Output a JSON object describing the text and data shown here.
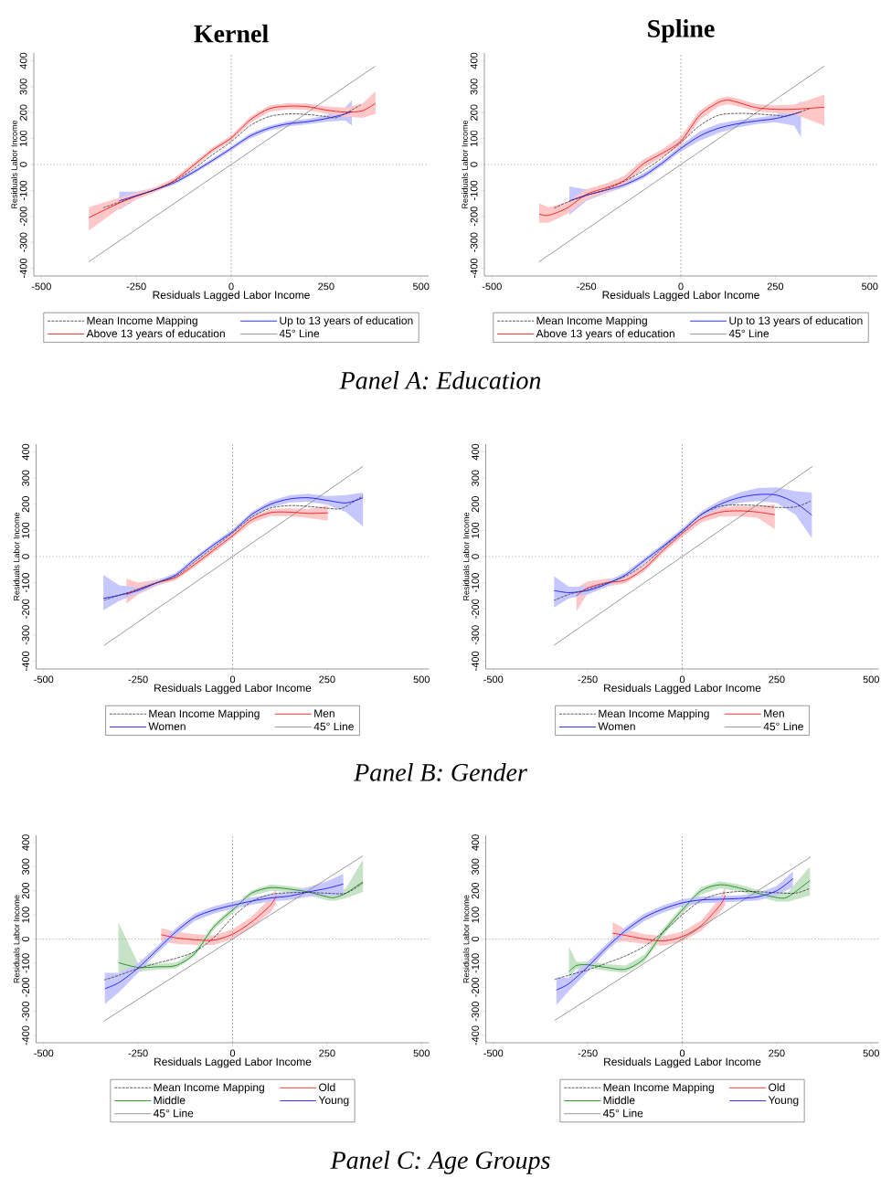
{
  "chart_data": [
    {
      "type": "line",
      "title": "Kernel",
      "xlabel": "Residuals Lagged Labor Income",
      "ylabel": "Residuals Labor Income",
      "xlim": [
        -520,
        520
      ],
      "ylim": [
        -430,
        430
      ],
      "xticks": [
        -500,
        -250,
        0,
        250,
        500
      ],
      "yticks": [
        -400,
        -300,
        -200,
        -100,
        0,
        100,
        200,
        300,
        400
      ],
      "legend": "bottom",
      "annotations": [
        "Panel A: Education"
      ],
      "ref_lines": [
        {
          "axis": "x",
          "value": 0,
          "line_style": "dashed",
          "color": "#808080"
        },
        {
          "axis": "y",
          "value": 0,
          "line_style": "dotted",
          "color": "#808080"
        }
      ],
      "series": [
        {
          "name": "Mean Income Mapping",
          "color": "#333333",
          "line_style": "dashed",
          "x": [
            -337,
            -300,
            -250,
            -200,
            -150,
            -100,
            -50,
            0,
            50,
            100,
            150,
            200,
            250,
            280,
            341
          ],
          "values": [
            -167,
            -148,
            -122,
            -97,
            -65,
            -18,
            37,
            88,
            150,
            185,
            195,
            193,
            185,
            182,
            230
          ]
        },
        {
          "name": "Up to 13 years of education",
          "color": "#0000ff",
          "x": [
            -295,
            -250,
            -200,
            -150,
            -100,
            -50,
            0,
            50,
            100,
            150,
            200,
            250,
            300,
            318
          ],
          "values": [
            -140,
            -120,
            -97,
            -70,
            -30,
            15,
            62,
            110,
            140,
            157,
            165,
            177,
            195,
            205
          ],
          "lower": [
            -175,
            -135,
            -105,
            -78,
            -38,
            7,
            54,
            100,
            130,
            147,
            155,
            165,
            170,
            150
          ],
          "upper": [
            -105,
            -105,
            -89,
            -62,
            -22,
            23,
            70,
            120,
            150,
            167,
            175,
            189,
            220,
            248
          ]
        },
        {
          "name": "Above 13 years of education",
          "color": "#ff0000",
          "x": [
            -375,
            -300,
            -250,
            -200,
            -150,
            -100,
            -50,
            0,
            50,
            100,
            150,
            200,
            250,
            300,
            345,
            380
          ],
          "values": [
            -205,
            -152,
            -122,
            -97,
            -62,
            -4,
            55,
            102,
            172,
            215,
            225,
            223,
            210,
            202,
            207,
            236
          ],
          "lower": [
            -255,
            -175,
            -135,
            -107,
            -72,
            -14,
            45,
            92,
            160,
            203,
            213,
            211,
            196,
            185,
            180,
            195
          ],
          "upper": [
            -165,
            -130,
            -109,
            -87,
            -52,
            6,
            65,
            112,
            184,
            227,
            237,
            235,
            224,
            219,
            234,
            282
          ]
        },
        {
          "name": "45° Line",
          "color": "#808080",
          "x": [
            -376,
            379
          ],
          "values": [
            -376,
            379
          ]
        }
      ]
    },
    {
      "type": "line",
      "title": "Spline",
      "xlabel": "Residuals Lagged Labor Income",
      "ylabel": "Residuals Labor Income",
      "xlim": [
        -520,
        520
      ],
      "ylim": [
        -430,
        430
      ],
      "xticks": [
        -500,
        -250,
        0,
        250,
        500
      ],
      "yticks": [
        -400,
        -300,
        -200,
        -100,
        0,
        100,
        200,
        300,
        400
      ],
      "legend": "bottom",
      "ref_lines": [
        {
          "axis": "x",
          "value": 0,
          "line_style": "dashed",
          "color": "#808080"
        },
        {
          "axis": "y",
          "value": 0,
          "line_style": "dotted",
          "color": "#808080"
        }
      ],
      "series": [
        {
          "name": "Mean Income Mapping",
          "color": "#333333",
          "line_style": "dashed",
          "x": [
            -335,
            -300,
            -250,
            -200,
            -150,
            -100,
            -50,
            0,
            50,
            100,
            150,
            200,
            250,
            280,
            340
          ],
          "values": [
            -168,
            -145,
            -120,
            -97,
            -65,
            -25,
            25,
            85,
            150,
            190,
            197,
            195,
            190,
            187,
            215
          ]
        },
        {
          "name": "Up to 13 years of education",
          "color": "#0000ff",
          "x": [
            -295,
            -250,
            -200,
            -150,
            -100,
            -50,
            0,
            50,
            100,
            150,
            200,
            250,
            300,
            318
          ],
          "values": [
            -140,
            -118,
            -100,
            -78,
            -45,
            5,
            62,
            110,
            140,
            157,
            168,
            177,
            195,
            203
          ],
          "lower": [
            -195,
            -140,
            -112,
            -88,
            -55,
            -5,
            50,
            92,
            122,
            143,
            156,
            163,
            150,
            105
          ],
          "upper": [
            -85,
            -96,
            -88,
            -68,
            -35,
            15,
            74,
            128,
            158,
            171,
            180,
            191,
            225,
            245
          ]
        },
        {
          "name": "Above 13 years of education",
          "color": "#ff0000",
          "x": [
            -375,
            -350,
            -300,
            -250,
            -200,
            -150,
            -100,
            -50,
            0,
            50,
            100,
            125,
            150,
            200,
            250,
            300,
            380
          ],
          "values": [
            -191,
            -196,
            -167,
            -115,
            -91,
            -62,
            2,
            43,
            90,
            190,
            240,
            248,
            240,
            219,
            213,
            213,
            221
          ],
          "lower": [
            -225,
            -225,
            -190,
            -135,
            -108,
            -80,
            -15,
            28,
            72,
            172,
            225,
            233,
            225,
            205,
            198,
            195,
            150
          ],
          "upper": [
            -150,
            -165,
            -145,
            -95,
            -74,
            -44,
            19,
            58,
            108,
            208,
            255,
            263,
            255,
            233,
            228,
            231,
            270
          ]
        },
        {
          "name": "45° Line",
          "color": "#808080",
          "x": [
            -376,
            380
          ],
          "values": [
            -376,
            380
          ]
        }
      ]
    },
    {
      "type": "line",
      "xlabel": "Residuals Lagged Labor Income",
      "ylabel": "Residuals Labor Income",
      "xlim": [
        -520,
        520
      ],
      "ylim": [
        -430,
        430
      ],
      "xticks": [
        -500,
        -250,
        0,
        250,
        500
      ],
      "yticks": [
        -400,
        -300,
        -200,
        -100,
        0,
        100,
        200,
        300,
        400
      ],
      "legend": "bottom",
      "annotations": [
        "Panel B: Gender"
      ],
      "ref_lines": [
        {
          "axis": "x",
          "value": 0,
          "line_style": "dashed",
          "color": "#808080"
        },
        {
          "axis": "y",
          "value": 0,
          "line_style": "dotted",
          "color": "#808080"
        }
      ],
      "series": [
        {
          "name": "Mean Income Mapping",
          "color": "#333333",
          "line_style": "dashed",
          "x": [
            -340,
            -300,
            -250,
            -200,
            -150,
            -100,
            -50,
            0,
            50,
            100,
            150,
            200,
            250,
            290,
            345
          ],
          "values": [
            -167,
            -148,
            -125,
            -100,
            -75,
            -20,
            35,
            90,
            150,
            185,
            195,
            192,
            185,
            185,
            233
          ]
        },
        {
          "name": "Men",
          "color": "#ff0000",
          "x": [
            -281,
            -250,
            -200,
            -150,
            -100,
            -50,
            0,
            50,
            100,
            150,
            200,
            252
          ],
          "values": [
            -147,
            -125,
            -100,
            -80,
            -30,
            25,
            80,
            140,
            168,
            170,
            165,
            167
          ],
          "lower": [
            -180,
            -145,
            -112,
            -90,
            -40,
            15,
            70,
            128,
            155,
            155,
            148,
            137
          ],
          "upper": [
            -85,
            -100,
            -88,
            -70,
            -20,
            35,
            90,
            152,
            181,
            185,
            182,
            195
          ]
        },
        {
          "name": "Women",
          "color": "#0000ff",
          "x": [
            -342,
            -300,
            -250,
            -200,
            -150,
            -100,
            -50,
            0,
            50,
            100,
            150,
            200,
            250,
            300,
            345
          ],
          "values": [
            -160,
            -148,
            -130,
            -100,
            -70,
            -10,
            45,
            95,
            160,
            200,
            220,
            225,
            215,
            205,
            225
          ],
          "lower": [
            -205,
            -170,
            -140,
            -108,
            -78,
            -18,
            37,
            87,
            150,
            188,
            206,
            210,
            198,
            170,
            115
          ],
          "upper": [
            -70,
            -110,
            -118,
            -92,
            -62,
            -2,
            53,
            103,
            170,
            212,
            234,
            240,
            232,
            235,
            245
          ]
        },
        {
          "name": "45° Line",
          "color": "#808080",
          "x": [
            -340,
            345
          ],
          "values": [
            -340,
            345
          ]
        }
      ]
    },
    {
      "type": "line",
      "xlabel": "Residuals Lagged Labor Income",
      "ylabel": "Residuals Labor Income",
      "xlim": [
        -520,
        520
      ],
      "ylim": [
        -430,
        430
      ],
      "xticks": [
        -500,
        -250,
        0,
        250,
        500
      ],
      "yticks": [
        -400,
        -300,
        -200,
        -100,
        0,
        100,
        200,
        300,
        400
      ],
      "legend": "bottom",
      "ref_lines": [
        {
          "axis": "x",
          "value": 0,
          "line_style": "dashed",
          "color": "#808080"
        },
        {
          "axis": "y",
          "value": 0,
          "line_style": "dotted",
          "color": "#808080"
        }
      ],
      "series": [
        {
          "name": "Mean Income Mapping",
          "color": "#333333",
          "line_style": "dashed",
          "x": [
            -340,
            -300,
            -250,
            -200,
            -150,
            -100,
            -50,
            0,
            50,
            100,
            150,
            200,
            250,
            300,
            340
          ],
          "values": [
            -168,
            -145,
            -125,
            -102,
            -75,
            -30,
            35,
            95,
            160,
            192,
            198,
            195,
            188,
            190,
            212
          ]
        },
        {
          "name": "Men",
          "color": "#ff0000",
          "x": [
            -280,
            -250,
            -200,
            -150,
            -100,
            -50,
            0,
            50,
            100,
            150,
            200,
            245
          ],
          "values": [
            -150,
            -120,
            -100,
            -90,
            -45,
            25,
            88,
            145,
            170,
            175,
            170,
            160
          ],
          "lower": [
            -210,
            -140,
            -115,
            -102,
            -57,
            13,
            75,
            130,
            153,
            155,
            148,
            105
          ],
          "upper": [
            -120,
            -95,
            -85,
            -78,
            -33,
            37,
            101,
            160,
            187,
            195,
            192,
            200
          ]
        },
        {
          "name": "Women",
          "color": "#0000ff",
          "x": [
            -339,
            -300,
            -250,
            -200,
            -150,
            -100,
            -50,
            0,
            50,
            100,
            150,
            200,
            250,
            300,
            343
          ],
          "values": [
            -130,
            -138,
            -130,
            -105,
            -70,
            -15,
            40,
            98,
            160,
            200,
            225,
            237,
            235,
            205,
            158
          ],
          "lower": [
            -195,
            -160,
            -145,
            -115,
            -80,
            -25,
            30,
            88,
            148,
            185,
            205,
            212,
            205,
            160,
            70
          ],
          "upper": [
            -75,
            -115,
            -115,
            -95,
            -60,
            -5,
            50,
            108,
            172,
            215,
            245,
            262,
            265,
            250,
            245
          ]
        },
        {
          "name": "45° Line",
          "color": "#808080",
          "x": [
            -340,
            345
          ],
          "values": [
            -340,
            345
          ]
        }
      ]
    },
    {
      "type": "line",
      "xlabel": "Residuals Lagged Labor Income",
      "ylabel": "Residuals Labor Income",
      "xlim": [
        -520,
        520
      ],
      "ylim": [
        -430,
        430
      ],
      "xticks": [
        -500,
        -250,
        0,
        250,
        500
      ],
      "yticks": [
        -400,
        -300,
        -200,
        -100,
        0,
        100,
        200,
        300,
        400
      ],
      "legend": "bottom",
      "annotations": [
        "Panel C: Age Groups"
      ],
      "ref_lines": [
        {
          "axis": "x",
          "value": 0,
          "line_style": "dashed",
          "color": "#808080"
        },
        {
          "axis": "y",
          "value": 0,
          "line_style": "dotted",
          "color": "#808080"
        }
      ],
      "series": [
        {
          "name": "Mean Income Mapping",
          "color": "#333333",
          "line_style": "dashed",
          "x": [
            -340,
            -300,
            -250,
            -200,
            -150,
            -100,
            -50,
            0,
            50,
            100,
            150,
            200,
            250,
            300,
            345
          ],
          "values": [
            -170,
            -150,
            -122,
            -100,
            -80,
            -52,
            5,
            90,
            155,
            185,
            192,
            193,
            190,
            190,
            233
          ]
        },
        {
          "name": "Old",
          "color": "#ff0000",
          "x": [
            -189,
            -150,
            -100,
            -50,
            0,
            50,
            100,
            115
          ],
          "values": [
            18,
            5,
            -3,
            -5,
            20,
            70,
            140,
            178
          ],
          "lower": [
            -10,
            -20,
            -25,
            -25,
            0,
            48,
            110,
            145
          ],
          "upper": [
            45,
            30,
            20,
            15,
            40,
            92,
            170,
            210
          ]
        },
        {
          "name": "Middle",
          "color": "#008000",
          "x": [
            -302,
            -250,
            -200,
            -150,
            -100,
            -50,
            5,
            50,
            100,
            150,
            200,
            250,
            270,
            300,
            345
          ],
          "values": [
            -98,
            -118,
            -115,
            -110,
            -60,
            50,
            127,
            190,
            213,
            207,
            195,
            175,
            172,
            190,
            238
          ],
          "lower": [
            -146,
            -135,
            -127,
            -122,
            -72,
            38,
            115,
            178,
            200,
            194,
            182,
            160,
            158,
            170,
            195
          ],
          "upper": [
            68,
            -100,
            -103,
            -98,
            -48,
            62,
            139,
            202,
            226,
            220,
            208,
            190,
            186,
            210,
            330
          ]
        },
        {
          "name": "Young",
          "color": "#0000ff",
          "x": [
            -338,
            -300,
            -250,
            -200,
            -150,
            -100,
            -50,
            0,
            50,
            100,
            150,
            200,
            250,
            293
          ],
          "values": [
            -206,
            -180,
            -120,
            -45,
            30,
            90,
            120,
            140,
            157,
            170,
            178,
            195,
            210,
            228
          ],
          "lower": [
            -270,
            -220,
            -140,
            -60,
            15,
            75,
            105,
            125,
            142,
            155,
            162,
            175,
            180,
            180
          ],
          "upper": [
            -140,
            -140,
            -100,
            -30,
            45,
            105,
            135,
            155,
            172,
            185,
            194,
            215,
            240,
            270
          ]
        },
        {
          "name": "45° Line",
          "color": "#808080",
          "x": [
            -340,
            345
          ],
          "values": [
            -340,
            345
          ]
        }
      ]
    },
    {
      "type": "line",
      "xlabel": "Residuals Lagged Labor Income",
      "ylabel": "Residuals Labor Income",
      "xlim": [
        -520,
        520
      ],
      "ylim": [
        -430,
        430
      ],
      "xticks": [
        -500,
        -250,
        0,
        250,
        500
      ],
      "yticks": [
        -400,
        -300,
        -200,
        -100,
        0,
        100,
        200,
        300,
        400
      ],
      "legend": "bottom",
      "ref_lines": [
        {
          "axis": "x",
          "value": 0,
          "line_style": "dashed",
          "color": "#808080"
        },
        {
          "axis": "y",
          "value": 0,
          "line_style": "dotted",
          "color": "#808080"
        }
      ],
      "series": [
        {
          "name": "Mean Income Mapping",
          "color": "#333333",
          "line_style": "dashed",
          "x": [
            -338,
            -300,
            -250,
            -200,
            -150,
            -100,
            -50,
            0,
            50,
            100,
            150,
            200,
            250,
            300,
            338
          ],
          "values": [
            -168,
            -150,
            -128,
            -100,
            -70,
            -30,
            30,
            100,
            160,
            188,
            197,
            196,
            192,
            190,
            210
          ]
        },
        {
          "name": "Old",
          "color": "#ff0000",
          "x": [
            -184,
            -150,
            -100,
            -50,
            0,
            50,
            100,
            114
          ],
          "values": [
            24,
            15,
            0,
            -8,
            10,
            55,
            140,
            180
          ],
          "lower": [
            -10,
            -10,
            -20,
            -28,
            -10,
            33,
            110,
            140
          ],
          "upper": [
            70,
            40,
            20,
            12,
            30,
            77,
            170,
            220
          ]
        },
        {
          "name": "Middle",
          "color": "#008000",
          "x": [
            -300,
            -280,
            -250,
            -200,
            -150,
            -100,
            -50,
            0,
            50,
            100,
            150,
            200,
            250,
            280,
            338
          ],
          "values": [
            -136,
            -110,
            -107,
            -118,
            -125,
            -80,
            30,
            120,
            200,
            225,
            212,
            190,
            172,
            175,
            243
          ],
          "lower": [
            -160,
            -125,
            -120,
            -132,
            -140,
            -95,
            15,
            105,
            185,
            210,
            198,
            176,
            155,
            155,
            180
          ],
          "upper": [
            -30,
            -95,
            -94,
            -104,
            -110,
            -65,
            45,
            135,
            215,
            240,
            226,
            204,
            189,
            195,
            300
          ]
        },
        {
          "name": "Young",
          "color": "#0000ff",
          "x": [
            -333,
            -300,
            -250,
            -200,
            -150,
            -100,
            -50,
            0,
            50,
            100,
            150,
            200,
            250,
            293
          ],
          "values": [
            -211,
            -185,
            -115,
            -35,
            35,
            90,
            125,
            150,
            162,
            165,
            168,
            175,
            200,
            250
          ],
          "lower": [
            -275,
            -215,
            -135,
            -50,
            20,
            75,
            110,
            135,
            148,
            152,
            155,
            160,
            180,
            215
          ],
          "upper": [
            -160,
            -160,
            -95,
            -20,
            50,
            105,
            140,
            165,
            176,
            178,
            181,
            190,
            220,
            280
          ]
        },
        {
          "name": "45° Line",
          "color": "#808080",
          "x": [
            -338,
            340
          ],
          "values": [
            -338,
            340
          ]
        }
      ]
    }
  ]
}
